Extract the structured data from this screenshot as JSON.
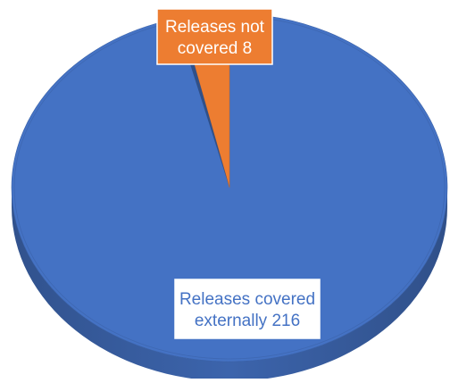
{
  "chart_data": {
    "type": "pie",
    "style": "3d",
    "slices": [
      {
        "label": "Releases covered externally",
        "value": 216,
        "color": "#4472C4",
        "data_label": [
          "Releases covered",
          "externally 216"
        ]
      },
      {
        "label": "Releases not covered",
        "value": 8,
        "color": "#ED7D31",
        "data_label": [
          "Releases not",
          "covered 8"
        ]
      }
    ],
    "title": "",
    "legend": "none"
  }
}
